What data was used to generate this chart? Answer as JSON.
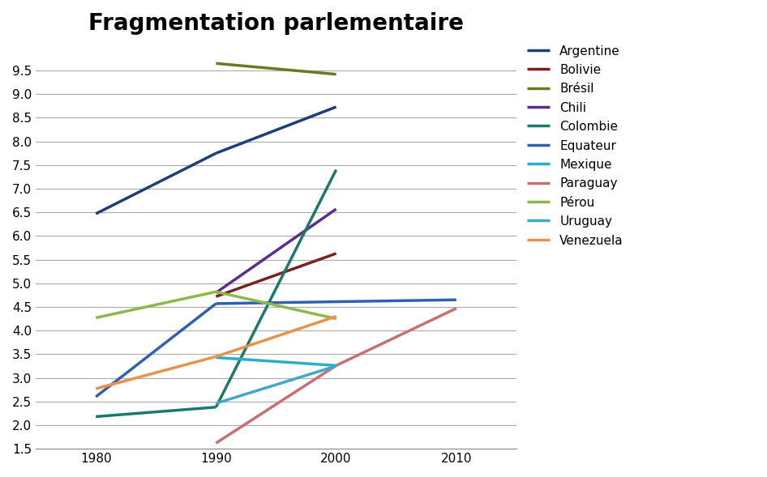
{
  "title": "Fragmentation parlementaire",
  "title_fontsize": 20,
  "title_fontweight": "bold",
  "years": [
    1980,
    1990,
    2000,
    2010
  ],
  "series": {
    "Argentine": [
      6.47,
      7.75,
      8.73,
      null
    ],
    "Bolivie": [
      null,
      4.72,
      5.63,
      null
    ],
    "Brésil": [
      null,
      9.65,
      9.42,
      null
    ],
    "Chili": [
      null,
      4.8,
      6.57,
      null
    ],
    "Colombie": [
      2.18,
      2.38,
      7.4,
      null
    ],
    "Equateur": [
      2.6,
      4.57,
      null,
      4.65
    ],
    "Mexique": [
      null,
      3.43,
      3.26,
      null
    ],
    "Paraguay": [
      null,
      1.62,
      3.26,
      4.47
    ],
    "Pérou": [
      4.27,
      4.82,
      4.25,
      null
    ],
    "Uruguay": [
      null,
      2.46,
      3.25,
      null
    ],
    "Venezuela": [
      2.77,
      3.45,
      4.3,
      null
    ]
  },
  "colors": {
    "Argentine": "#1F3D7A",
    "Bolivie": "#7B2020",
    "Brésil": "#6B7A1F",
    "Chili": "#5B2D8E",
    "Colombie": "#1A7A6A",
    "Equateur": "#3060B0",
    "Mexique": "#2AADCB",
    "Paraguay": "#C87070",
    "Pérou": "#8DB84A",
    "Uruguay": "#40A8C8",
    "Venezuela": "#E8924A"
  },
  "ylim": [
    1.5,
    10.0
  ],
  "xlim": [
    1975,
    2015
  ],
  "xticks": [
    1980,
    1990,
    2000,
    2010
  ],
  "yticks": [
    1.5,
    2.0,
    2.5,
    3.0,
    3.5,
    4.0,
    4.5,
    5.0,
    5.5,
    6.0,
    6.5,
    7.0,
    7.5,
    8.0,
    8.5,
    9.0,
    9.5
  ],
  "linewidth": 2.5,
  "background_color": "#ffffff"
}
